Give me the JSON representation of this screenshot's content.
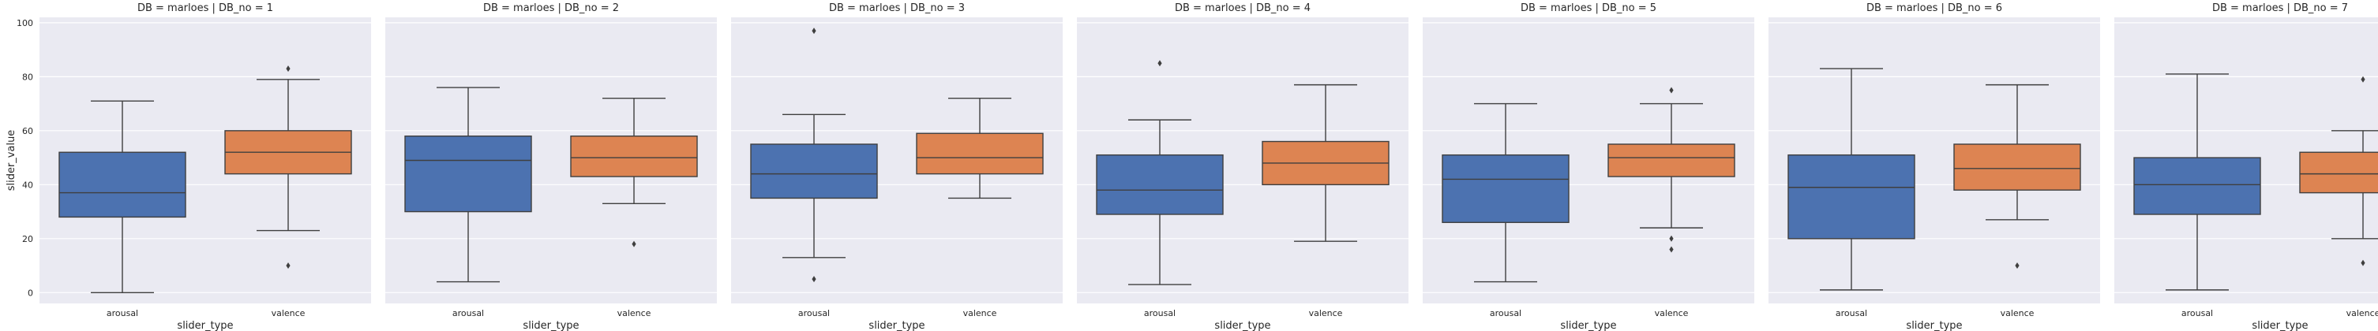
{
  "chart_data": {
    "type": "box",
    "ylabel": "slider_value",
    "xlabel": "slider_type",
    "categories": [
      "arousal",
      "valence"
    ],
    "colors": [
      "#4c72b0",
      "#dd8452"
    ],
    "ylim": [
      -4,
      102
    ],
    "yticks": [
      0,
      20,
      40,
      60,
      80,
      100
    ],
    "facets": [
      {
        "title": "DB = marloes | DB_no = 1",
        "boxes": [
          {
            "category": "arousal",
            "whisker_low": 0,
            "q1": 28,
            "median": 37,
            "q3": 52,
            "whisker_high": 71,
            "fliers": []
          },
          {
            "category": "valence",
            "whisker_low": 23,
            "q1": 44,
            "median": 52,
            "q3": 60,
            "whisker_high": 79,
            "fliers": [
              10,
              83
            ]
          }
        ]
      },
      {
        "title": "DB = marloes | DB_no = 2",
        "boxes": [
          {
            "category": "arousal",
            "whisker_low": 4,
            "q1": 30,
            "median": 49,
            "q3": 58,
            "whisker_high": 76,
            "fliers": []
          },
          {
            "category": "valence",
            "whisker_low": 33,
            "q1": 43,
            "median": 50,
            "q3": 58,
            "whisker_high": 72,
            "fliers": [
              18
            ]
          }
        ]
      },
      {
        "title": "DB = marloes | DB_no = 3",
        "boxes": [
          {
            "category": "arousal",
            "whisker_low": 13,
            "q1": 35,
            "median": 44,
            "q3": 55,
            "whisker_high": 66,
            "fliers": [
              5,
              97
            ]
          },
          {
            "category": "valence",
            "whisker_low": 35,
            "q1": 44,
            "median": 50,
            "q3": 59,
            "whisker_high": 72,
            "fliers": []
          }
        ]
      },
      {
        "title": "DB = marloes | DB_no = 4",
        "boxes": [
          {
            "category": "arousal",
            "whisker_low": 3,
            "q1": 29,
            "median": 38,
            "q3": 51,
            "whisker_high": 64,
            "fliers": [
              85
            ]
          },
          {
            "category": "valence",
            "whisker_low": 19,
            "q1": 40,
            "median": 48,
            "q3": 56,
            "whisker_high": 77,
            "fliers": []
          }
        ]
      },
      {
        "title": "DB = marloes | DB_no = 5",
        "boxes": [
          {
            "category": "arousal",
            "whisker_low": 4,
            "q1": 26,
            "median": 42,
            "q3": 51,
            "whisker_high": 70,
            "fliers": []
          },
          {
            "category": "valence",
            "whisker_low": 24,
            "q1": 43,
            "median": 50,
            "q3": 55,
            "whisker_high": 70,
            "fliers": [
              16,
              20,
              75
            ]
          }
        ]
      },
      {
        "title": "DB = marloes | DB_no = 6",
        "boxes": [
          {
            "category": "arousal",
            "whisker_low": 1,
            "q1": 20,
            "median": 39,
            "q3": 51,
            "whisker_high": 83,
            "fliers": []
          },
          {
            "category": "valence",
            "whisker_low": 27,
            "q1": 38,
            "median": 46,
            "q3": 55,
            "whisker_high": 77,
            "fliers": [
              10
            ]
          }
        ]
      },
      {
        "title": "DB = marloes | DB_no = 7",
        "boxes": [
          {
            "category": "arousal",
            "whisker_low": 1,
            "q1": 29,
            "median": 40,
            "q3": 50,
            "whisker_high": 81,
            "fliers": []
          },
          {
            "category": "valence",
            "whisker_low": 20,
            "q1": 37,
            "median": 44,
            "q3": 52,
            "whisker_high": 60,
            "fliers": [
              11,
              79
            ]
          }
        ]
      }
    ]
  }
}
